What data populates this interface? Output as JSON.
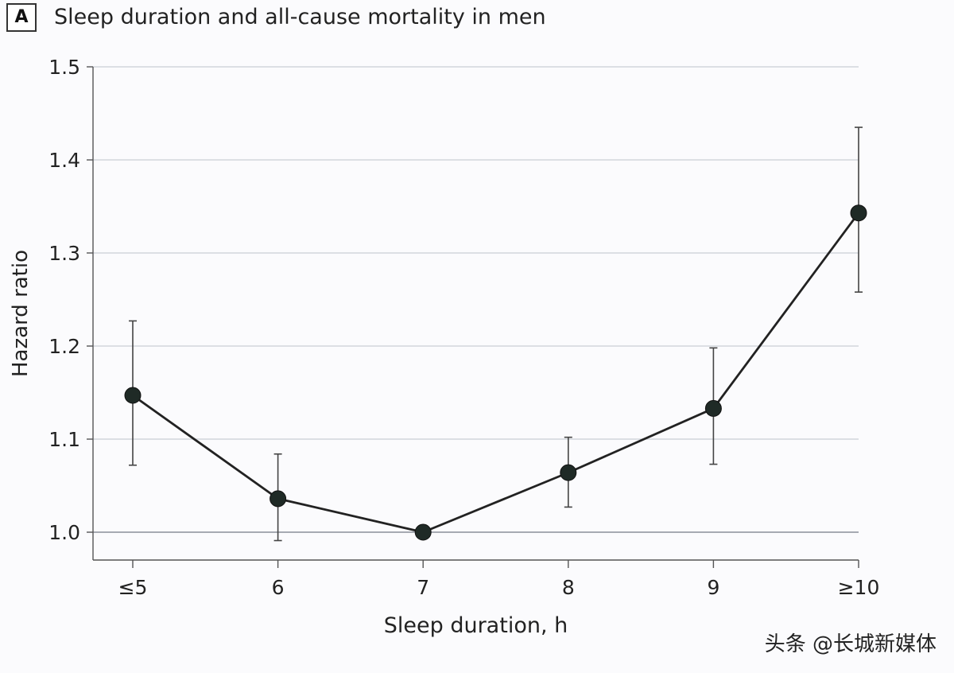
{
  "figure": {
    "panel_label": "A",
    "title": "Sleep duration and all-cause mortality in men",
    "watermark": "头条 @长城新媒体"
  },
  "colors": {
    "line": "#222222",
    "marker": "#1f2a26",
    "grid": "#c9ced6",
    "axis": "#555555",
    "text": "#222222"
  },
  "chart_data": {
    "type": "line",
    "title": "Sleep duration and all-cause mortality in men",
    "xlabel": "Sleep duration, h",
    "ylabel": "Hazard ratio",
    "categories": [
      "≤5",
      "6",
      "7",
      "8",
      "9",
      "≥10"
    ],
    "series": [
      {
        "values": [
          1.147,
          1.036,
          1.0,
          1.064,
          1.133,
          1.343
        ],
        "ci_lower": [
          1.072,
          0.991,
          1.0,
          1.027,
          1.073,
          1.258
        ],
        "ci_upper": [
          1.227,
          1.084,
          1.0,
          1.102,
          1.198,
          1.435
        ]
      }
    ],
    "ylim": [
      0.97,
      1.5
    ],
    "yticks": [
      1.0,
      1.1,
      1.2,
      1.3,
      1.4,
      1.5
    ],
    "ytick_labels": [
      "1.0",
      "1.1",
      "1.2",
      "1.3",
      "1.4",
      "1.5"
    ],
    "grid": true,
    "grid_axis": "y"
  }
}
